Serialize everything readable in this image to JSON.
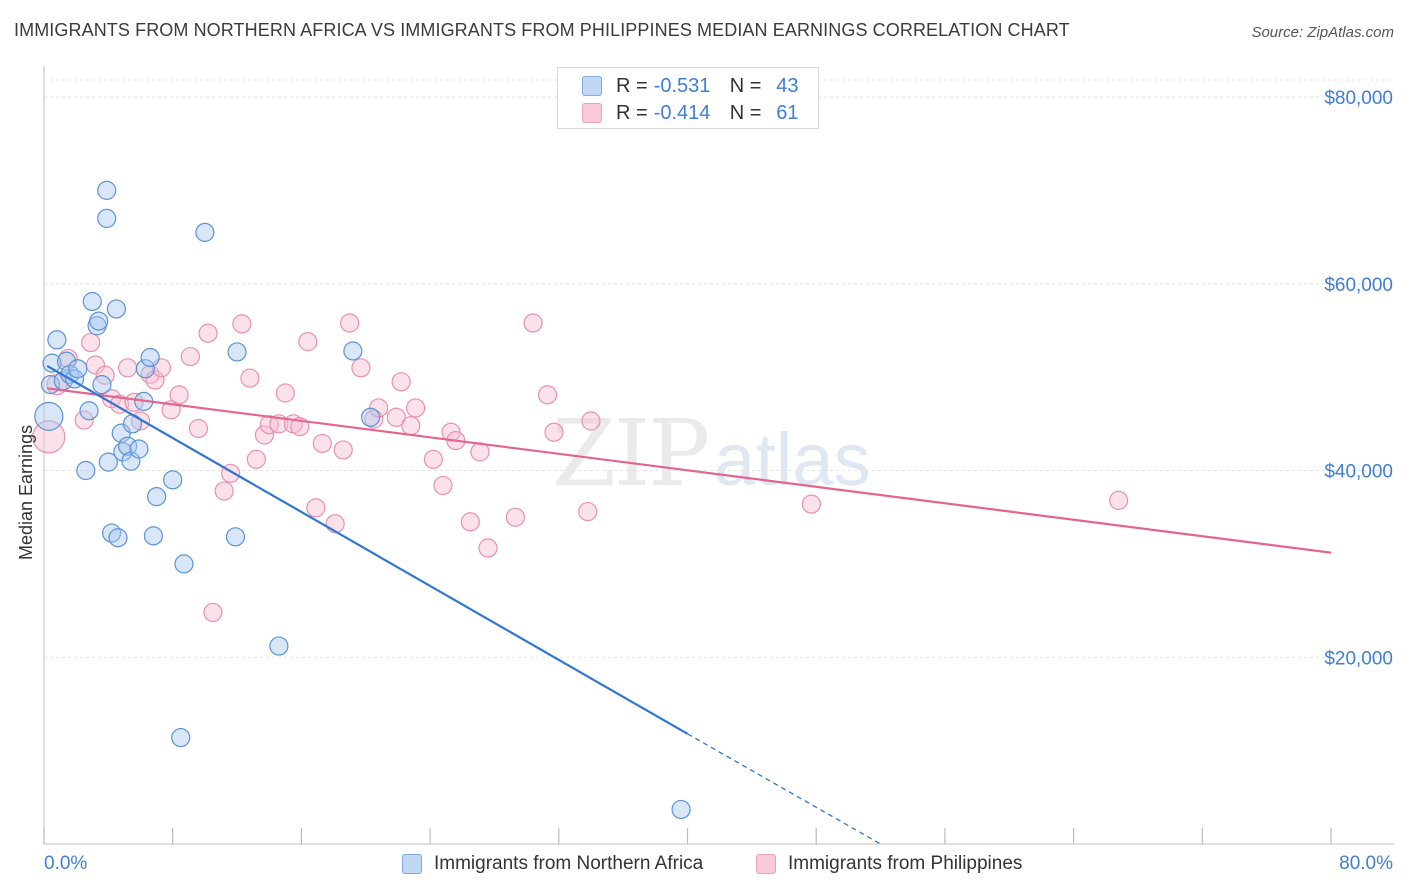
{
  "title": "IMMIGRANTS FROM NORTHERN AFRICA VS IMMIGRANTS FROM PHILIPPINES MEDIAN EARNINGS CORRELATION CHART",
  "source": "Source: ZipAtlas.com",
  "watermark": {
    "zip": "ZIP",
    "atlas": "atlas"
  },
  "legend": {
    "rows": [
      {
        "r_label": "R =",
        "r_value": "-0.531",
        "n_label": "N =",
        "n_value": "43"
      },
      {
        "r_label": "R =",
        "r_value": "-0.414",
        "n_label": "N =",
        "n_value": "61"
      }
    ]
  },
  "bottom_legend": {
    "series_a": "Immigrants from Northern Africa",
    "series_b": "Immigrants from Philippines"
  },
  "colors": {
    "blue_fill": "#a9c8f0",
    "blue_stroke": "#5b93d6",
    "blue_line": "#2f76d2",
    "pink_fill": "#f7bfd1",
    "pink_stroke": "#e990b0",
    "pink_line": "#e2648f",
    "axis_label": "#3f7fd3",
    "grid": "#e3e3e3"
  },
  "chart_data": {
    "type": "scatter",
    "title": "IMMIGRANTS FROM NORTHERN AFRICA VS IMMIGRANTS FROM PHILIPPINES MEDIAN EARNINGS CORRELATION CHART",
    "xlabel": "",
    "ylabel": "Median Earnings",
    "xlim": [
      0,
      80
    ],
    "ylim": [
      0,
      82000
    ],
    "x_tick_labels": [
      "0.0%",
      "80.0%"
    ],
    "y_ticks": [
      20000,
      40000,
      60000,
      80000
    ],
    "y_tick_labels": [
      "$20,000",
      "$40,000",
      "$60,000",
      "$80,000"
    ],
    "grid": true,
    "legend_position": "top-center",
    "series": [
      {
        "name": "Immigrants from Northern Africa",
        "r": -0.531,
        "n": 43,
        "trend": {
          "x0": 0.2,
          "y0": 51200,
          "x1": 40,
          "y1": 11800,
          "dash_to_x": 52,
          "dash_to_y": 0
        },
        "points": [
          [
            0.3,
            45800,
            14
          ],
          [
            0.4,
            49200,
            9
          ],
          [
            0.5,
            51500,
            9
          ],
          [
            0.8,
            54000,
            9
          ],
          [
            1.2,
            49600,
            9
          ],
          [
            1.4,
            51700,
            9
          ],
          [
            1.6,
            50300,
            9
          ],
          [
            1.9,
            49800,
            9
          ],
          [
            2.1,
            50900,
            9
          ],
          [
            2.6,
            40000,
            9
          ],
          [
            2.8,
            46400,
            9
          ],
          [
            3.0,
            58100,
            9
          ],
          [
            3.3,
            55500,
            9
          ],
          [
            3.4,
            56000,
            9
          ],
          [
            3.6,
            49200,
            9
          ],
          [
            3.9,
            70000,
            9
          ],
          [
            3.9,
            67000,
            9
          ],
          [
            4.0,
            40900,
            9
          ],
          [
            4.2,
            33300,
            9
          ],
          [
            4.5,
            57300,
            9
          ],
          [
            4.6,
            32800,
            9
          ],
          [
            4.8,
            44000,
            9
          ],
          [
            4.9,
            42000,
            9
          ],
          [
            5.2,
            42600,
            9
          ],
          [
            5.4,
            41000,
            9
          ],
          [
            5.5,
            45000,
            9
          ],
          [
            5.9,
            42300,
            9
          ],
          [
            6.2,
            47400,
            9
          ],
          [
            6.3,
            50900,
            9
          ],
          [
            6.6,
            52100,
            9
          ],
          [
            6.8,
            33000,
            9
          ],
          [
            7.0,
            37200,
            9
          ],
          [
            8.0,
            39000,
            9
          ],
          [
            8.5,
            11400,
            9
          ],
          [
            8.7,
            30000,
            9
          ],
          [
            10.0,
            65500,
            9
          ],
          [
            11.9,
            32900,
            9
          ],
          [
            12.0,
            52700,
            9
          ],
          [
            14.6,
            21200,
            9
          ],
          [
            19.2,
            52800,
            9
          ],
          [
            20.3,
            45700,
            9
          ],
          [
            39.6,
            3700,
            9
          ],
          [
            40.0,
            3700,
            0
          ]
        ]
      },
      {
        "name": "Immigrants from Philippines",
        "r": -0.414,
        "n": 61,
        "trend": {
          "x0": 0.2,
          "y0": 48800,
          "x1": 80,
          "y1": 31200
        },
        "points": [
          [
            0.3,
            43600,
            16
          ],
          [
            0.8,
            49200,
            10
          ],
          [
            1.5,
            52000,
            9
          ],
          [
            2.5,
            45400,
            9
          ],
          [
            2.9,
            53700,
            9
          ],
          [
            3.2,
            51300,
            9
          ],
          [
            3.8,
            50200,
            9
          ],
          [
            4.2,
            47700,
            9
          ],
          [
            4.7,
            47100,
            9
          ],
          [
            5.2,
            51000,
            9
          ],
          [
            5.6,
            47300,
            9
          ],
          [
            6.0,
            45300,
            9
          ],
          [
            6.6,
            50300,
            9
          ],
          [
            6.9,
            49700,
            9
          ],
          [
            7.3,
            51000,
            9
          ],
          [
            7.9,
            46500,
            9
          ],
          [
            8.4,
            48100,
            9
          ],
          [
            9.1,
            52200,
            9
          ],
          [
            9.6,
            44500,
            9
          ],
          [
            10.2,
            54700,
            9
          ],
          [
            10.5,
            24800,
            9
          ],
          [
            11.2,
            37800,
            9
          ],
          [
            11.6,
            39700,
            9
          ],
          [
            12.3,
            55700,
            9
          ],
          [
            12.8,
            49900,
            9
          ],
          [
            13.2,
            41200,
            9
          ],
          [
            13.7,
            43800,
            9
          ],
          [
            14.0,
            44900,
            9
          ],
          [
            14.6,
            45000,
            9
          ],
          [
            15.0,
            48300,
            9
          ],
          [
            15.5,
            45000,
            9
          ],
          [
            15.9,
            44700,
            9
          ],
          [
            16.4,
            53800,
            9
          ],
          [
            16.9,
            36000,
            9
          ],
          [
            17.3,
            42900,
            9
          ],
          [
            18.1,
            34300,
            9
          ],
          [
            18.6,
            42200,
            9
          ],
          [
            19.0,
            55800,
            9
          ],
          [
            19.7,
            51000,
            9
          ],
          [
            20.5,
            45500,
            9
          ],
          [
            20.8,
            46700,
            9
          ],
          [
            21.9,
            45700,
            9
          ],
          [
            22.2,
            49500,
            9
          ],
          [
            22.8,
            44800,
            9
          ],
          [
            23.1,
            46700,
            9
          ],
          [
            24.2,
            41200,
            9
          ],
          [
            24.8,
            38400,
            9
          ],
          [
            25.3,
            44100,
            9
          ],
          [
            25.6,
            43200,
            9
          ],
          [
            26.5,
            34500,
            9
          ],
          [
            27.1,
            42000,
            9
          ],
          [
            27.6,
            31700,
            9
          ],
          [
            29.3,
            35000,
            9
          ],
          [
            30.4,
            55800,
            9
          ],
          [
            31.3,
            48100,
            9
          ],
          [
            31.7,
            44100,
            9
          ],
          [
            33.8,
            35600,
            9
          ],
          [
            34.0,
            45300,
            9
          ],
          [
            47.7,
            36400,
            9
          ],
          [
            66.8,
            36800,
            9
          ],
          [
            5.0,
            47300,
            0
          ]
        ]
      }
    ]
  }
}
